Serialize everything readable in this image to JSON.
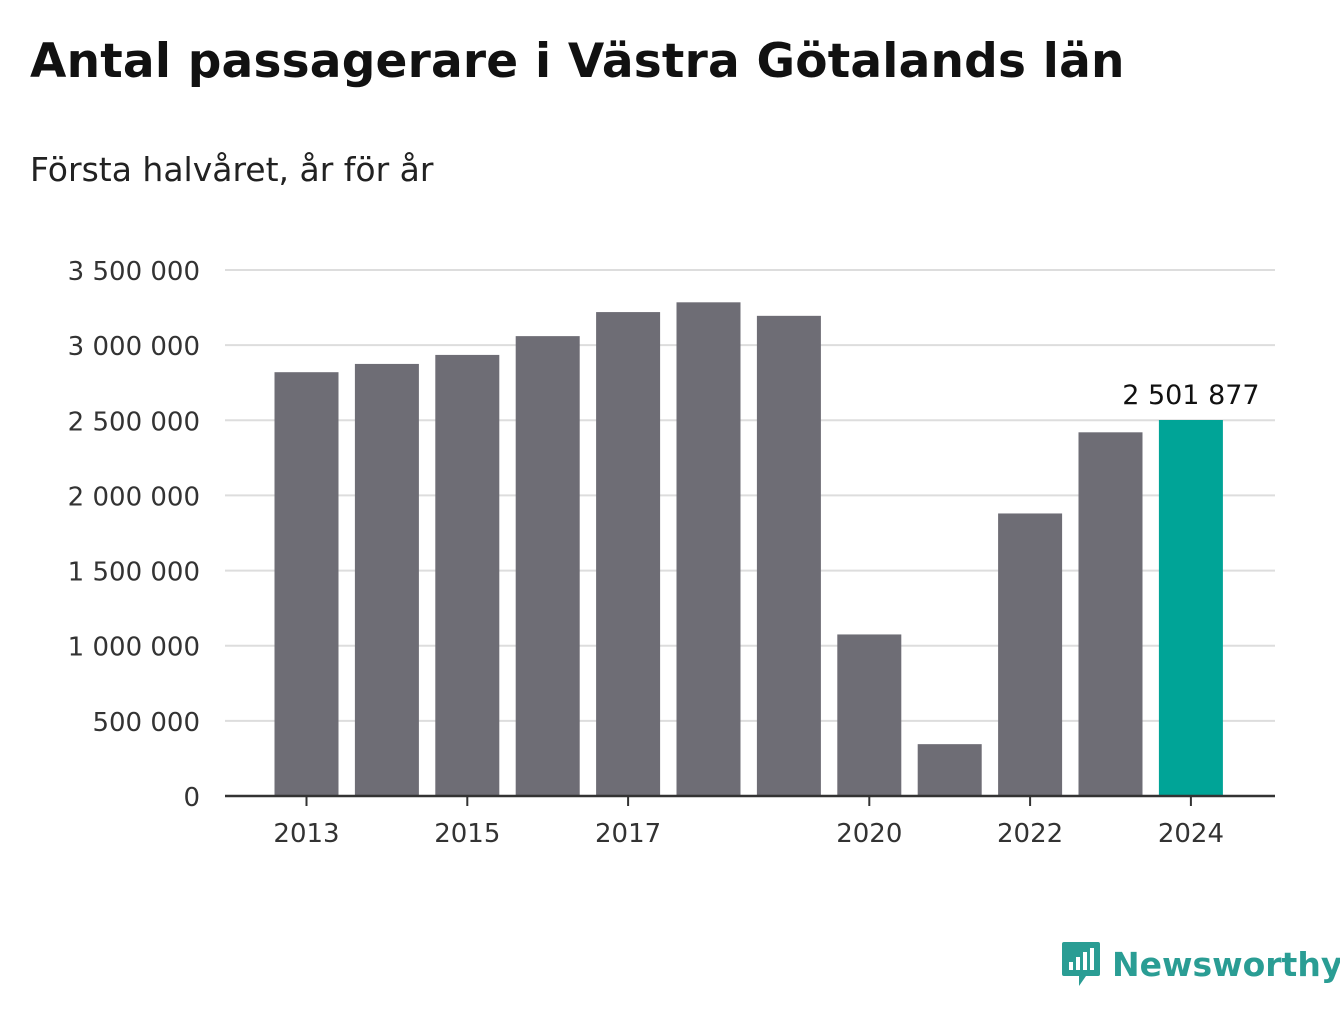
{
  "title": "Antal passagerare i Västra Götalands län",
  "subtitle": "Första halvåret, år för år",
  "brand": {
    "name": "Newsworthy",
    "icon": "newsworthy-logo-icon",
    "color": "#2a9d94"
  },
  "chart_data": {
    "type": "bar",
    "categories": [
      "2013",
      "2014",
      "2015",
      "2016",
      "2017",
      "2018",
      "2019",
      "2020",
      "2021",
      "2022",
      "2023",
      "2024"
    ],
    "values": [
      2820000,
      2875000,
      2935000,
      3060000,
      3220000,
      3285000,
      3195000,
      1075000,
      345000,
      1880000,
      2420000,
      2501877
    ],
    "x_tick_labels": [
      "2013",
      "",
      "2015",
      "",
      "2017",
      "",
      "",
      "2020",
      "",
      "2022",
      "",
      "2024"
    ],
    "y_ticks": [
      0,
      500000,
      1000000,
      1500000,
      2000000,
      2500000,
      3000000,
      3500000
    ],
    "y_tick_labels": [
      "0",
      "500 000",
      "1 000 000",
      "1 500 000",
      "2 000 000",
      "2 500 000",
      "3 000 000",
      "3 500 000"
    ],
    "ylim": [
      0,
      3500000
    ],
    "grid": true,
    "highlight_index": 11,
    "highlight_label": "2 501 877",
    "bar_color": "#6e6d75",
    "highlight_color": "#00a497",
    "grid_color": "#dddddd",
    "axis_color": "#333333",
    "xlabel": "",
    "ylabel": ""
  }
}
